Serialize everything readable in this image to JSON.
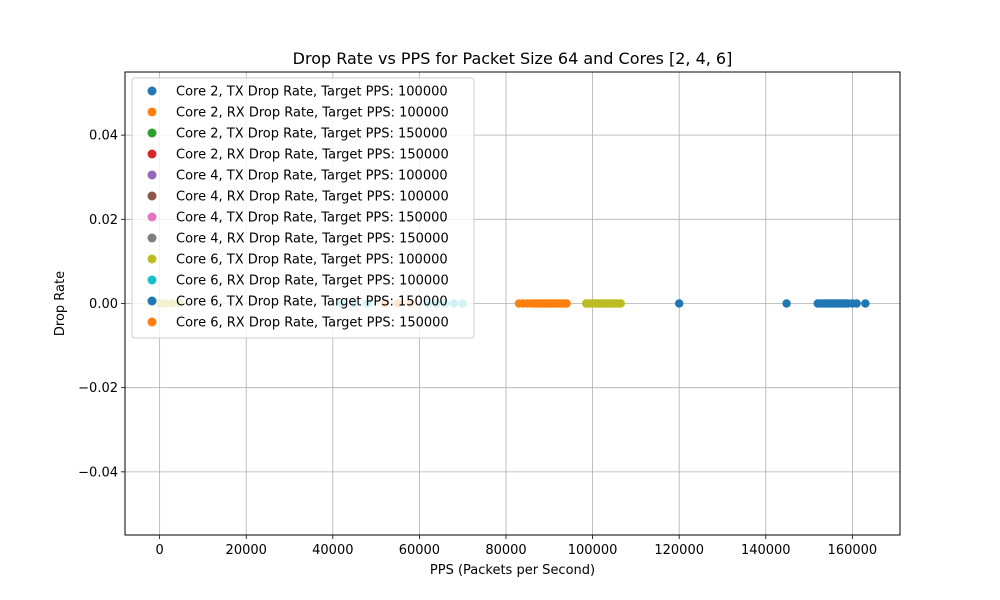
{
  "chart_data": {
    "type": "scatter",
    "title": "Drop Rate vs PPS for Packet Size 64 and Cores [2, 4, 6]",
    "xlabel": "PPS (Packets per Second)",
    "ylabel": "Drop Rate",
    "xlim": [
      -8000,
      171000
    ],
    "ylim": [
      -0.055,
      0.055
    ],
    "xticks": [
      0,
      20000,
      40000,
      60000,
      80000,
      100000,
      120000,
      140000,
      160000
    ],
    "xtick_labels": [
      "0",
      "20000",
      "40000",
      "60000",
      "80000",
      "100000",
      "120000",
      "140000",
      "160000"
    ],
    "yticks": [
      -0.04,
      -0.02,
      0.0,
      0.02,
      0.04
    ],
    "ytick_labels": [
      "−0.04",
      "−0.02",
      "0.00",
      "0.02",
      "0.04"
    ],
    "grid": true,
    "legend_position": "top-left",
    "series": [
      {
        "name": "Core 2, TX Drop Rate, Target PPS: 100000",
        "color": "#1f77b4",
        "x": [],
        "y": []
      },
      {
        "name": "Core 2, RX Drop Rate, Target PPS: 100000",
        "color": "#ff7f0e",
        "x": [],
        "y": []
      },
      {
        "name": "Core 2, TX Drop Rate, Target PPS: 150000",
        "color": "#2ca02c",
        "x": [],
        "y": []
      },
      {
        "name": "Core 2, RX Drop Rate, Target PPS: 150000",
        "color": "#d62728",
        "x": [],
        "y": []
      },
      {
        "name": "Core 4, TX Drop Rate, Target PPS: 100000",
        "color": "#9467bd",
        "x": [],
        "y": []
      },
      {
        "name": "Core 4, RX Drop Rate, Target PPS: 100000",
        "color": "#8c564b",
        "x": [],
        "y": []
      },
      {
        "name": "Core 4, TX Drop Rate, Target PPS: 150000",
        "color": "#e377c2",
        "x": [],
        "y": []
      },
      {
        "name": "Core 4, RX Drop Rate, Target PPS: 150000",
        "color": "#7f7f7f",
        "x": [],
        "y": []
      },
      {
        "name": "Core 6, TX Drop Rate, Target PPS: 100000",
        "color": "#bcbd22",
        "x": [
          0,
          1500,
          3000,
          4500,
          98500,
          99000,
          99500,
          100000,
          100500,
          101000,
          101500,
          102000,
          102500,
          103000,
          103500,
          104000,
          104500,
          105000,
          105500,
          106000,
          106500
        ],
        "y": [
          0,
          0,
          0,
          0,
          0,
          0,
          0,
          0,
          0,
          0,
          0,
          0,
          0,
          0,
          0,
          0,
          0,
          0,
          0,
          0,
          0
        ]
      },
      {
        "name": "Core 6, RX Drop Rate, Target PPS: 100000",
        "color": "#17becf",
        "x": [
          42000,
          45000,
          48000,
          62000,
          64000,
          66000,
          68000,
          70000
        ],
        "y": [
          0,
          0,
          0,
          0,
          0,
          0,
          0,
          0
        ]
      },
      {
        "name": "Core 6, TX Drop Rate, Target PPS: 150000",
        "color": "#1f77b4",
        "x": [
          120000,
          144800,
          152000,
          152500,
          153000,
          153500,
          154000,
          154500,
          155000,
          155500,
          156000,
          156500,
          157000,
          157500,
          158000,
          158500,
          159000,
          160000,
          161000,
          163000
        ],
        "y": [
          0,
          0,
          0,
          0,
          0,
          0,
          0,
          0,
          0,
          0,
          0,
          0,
          0,
          0,
          0,
          0,
          0,
          0,
          0,
          0
        ]
      },
      {
        "name": "Core 6, RX Drop Rate, Target PPS: 150000",
        "color": "#ff7f0e",
        "x": [
          52000,
          55000,
          58000,
          83000,
          84000,
          85000,
          86000,
          86500,
          87000,
          87500,
          88000,
          88500,
          89000,
          89500,
          90000,
          90500,
          91000,
          91500,
          92000,
          92500,
          93000,
          93500,
          94000
        ],
        "y": [
          0,
          0,
          0,
          0,
          0,
          0,
          0,
          0,
          0,
          0,
          0,
          0,
          0,
          0,
          0,
          0,
          0,
          0,
          0,
          0,
          0,
          0,
          0
        ]
      }
    ]
  }
}
